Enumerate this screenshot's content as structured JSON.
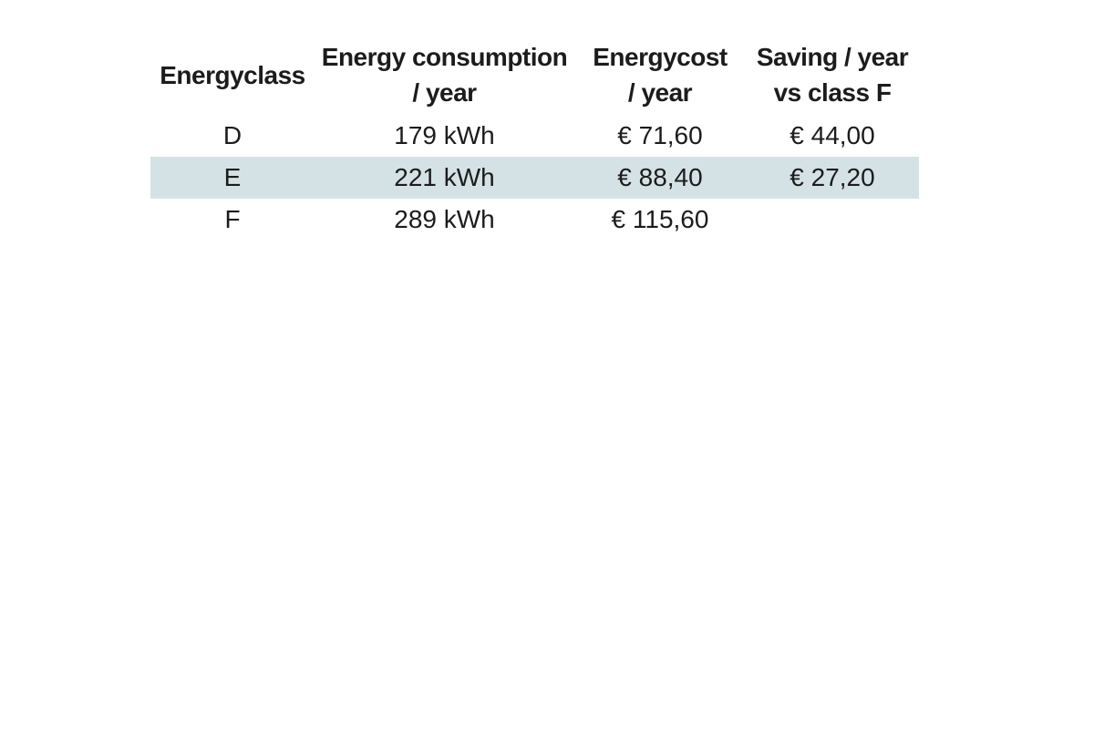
{
  "colors": {
    "background": "#ffffff",
    "text": "#1c1c1c",
    "row_highlight": "#d5e2e5"
  },
  "table": {
    "columns": [
      {
        "lines": [
          "Energyclass"
        ]
      },
      {
        "lines": [
          "Energy consumption",
          "/ year"
        ]
      },
      {
        "lines": [
          "Energycost",
          "/ year"
        ]
      },
      {
        "lines": [
          "Saving / year",
          "vs class F"
        ]
      }
    ],
    "rows": [
      {
        "energyclass": "D",
        "consumption": "179 kWh",
        "cost": "€ 71,60",
        "saving": "€ 44,00",
        "highlighted": false
      },
      {
        "energyclass": "E",
        "consumption": "221 kWh",
        "cost": "€ 88,40",
        "saving": "€ 27,20",
        "highlighted": true
      },
      {
        "energyclass": "F",
        "consumption": "289 kWh",
        "cost": "€ 115,60",
        "saving": "",
        "highlighted": false
      }
    ]
  },
  "chart_data": {
    "type": "table",
    "title": "",
    "columns": [
      "Energyclass",
      "Energy consumption / year",
      "Energycost / year",
      "Saving / year vs class F"
    ],
    "rows": [
      [
        "D",
        "179 kWh",
        "€ 71,60",
        "€ 44,00"
      ],
      [
        "E",
        "221 kWh",
        "€ 88,40",
        "€ 27,20"
      ],
      [
        "F",
        "289 kWh",
        "€ 115,60",
        ""
      ]
    ],
    "numeric": {
      "energy_consumption_kwh_per_year": [
        179,
        221,
        289
      ],
      "energy_cost_eur_per_year": [
        71.6,
        88.4,
        115.6
      ],
      "saving_eur_per_year_vs_class_F": [
        44.0,
        27.2,
        null
      ]
    },
    "highlighted_row": "E",
    "layout_hints": {
      "header_lines": 2,
      "alignment": "center",
      "gridlines": false,
      "highlight_style": "full-row light blue-gray band"
    }
  }
}
